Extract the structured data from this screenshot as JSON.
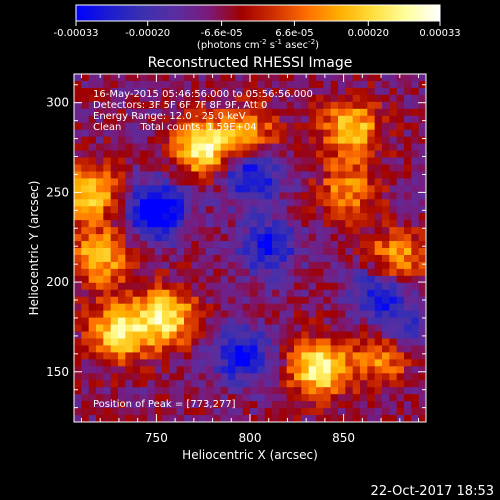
{
  "colorbar": {
    "tick_labels": [
      "-0.00033",
      "-0.00020",
      "-6.6e-05",
      "6.6e-05",
      "0.00020",
      "0.00033"
    ],
    "tick_values": [
      -0.00033,
      -0.0002,
      -6.6e-05,
      6.6e-05,
      0.0002,
      0.00033
    ],
    "range": [
      -0.00033,
      0.00033
    ],
    "units_label": "(photons cm",
    "units_exp1": "-2",
    "units_mid": " s",
    "units_exp2": "-1",
    "units_end": " asec",
    "units_exp3": "-2",
    "units_close": ")"
  },
  "title": "Reconstructed RHESSI Image",
  "annotations": {
    "time_range": "16-May-2015 05:46:56.000 to 05:56:56.000",
    "detectors": "Detectors: 3F 5F 6F 7F 8F 9F, Att 0",
    "energy": "Energy Range: 12.0 - 25.0 keV",
    "clean": "Clean      Total counts: 1.59E+04",
    "peak": "Position of Peak = [773,277]"
  },
  "footer_timestamp": "22-Oct-2017 18:53",
  "colors": {
    "background": "#000000",
    "text": "#ffffff",
    "cmap": [
      "#0000ff",
      "#1c1cd0",
      "#3a30b0",
      "#5a2ea0",
      "#7a1a7a",
      "#a00000",
      "#d03000",
      "#ff7000",
      "#ffb000",
      "#ffe040",
      "#ffffa0",
      "#ffffff"
    ]
  },
  "chart_data": {
    "type": "heatmap",
    "title": "Reconstructed RHESSI Image",
    "xlabel": "Heliocentric X (arcsec)",
    "ylabel": "Heliocentric Y (arcsec)",
    "xlim": [
      706,
      894
    ],
    "ylim": [
      122,
      316
    ],
    "xticks": [
      750,
      800,
      850
    ],
    "yticks": [
      150,
      200,
      250,
      300
    ],
    "xtick_labels": [
      "750",
      "800",
      "850"
    ],
    "ytick_labels": [
      "150",
      "200",
      "250",
      "300"
    ],
    "pixel_grid": [
      48,
      50
    ],
    "peak_position": [
      773,
      277
    ],
    "bright_regions": [
      {
        "x": 775,
        "y": 275,
        "level": 0.95
      },
      {
        "x": 755,
        "y": 180,
        "level": 0.9
      },
      {
        "x": 730,
        "y": 172,
        "level": 0.85
      },
      {
        "x": 837,
        "y": 152,
        "level": 0.95
      },
      {
        "x": 872,
        "y": 160,
        "level": 0.75
      },
      {
        "x": 714,
        "y": 250,
        "level": 0.8
      },
      {
        "x": 720,
        "y": 214,
        "level": 0.7
      },
      {
        "x": 854,
        "y": 285,
        "level": 0.75
      },
      {
        "x": 878,
        "y": 212,
        "level": 0.7
      },
      {
        "x": 800,
        "y": 282,
        "level": 0.55
      },
      {
        "x": 852,
        "y": 250,
        "level": 0.55
      }
    ],
    "dark_regions": [
      {
        "x": 750,
        "y": 240,
        "level": -0.9
      },
      {
        "x": 800,
        "y": 260,
        "level": -0.7
      },
      {
        "x": 810,
        "y": 220,
        "level": -0.6
      },
      {
        "x": 795,
        "y": 160,
        "level": -0.65
      },
      {
        "x": 870,
        "y": 195,
        "level": -0.65
      },
      {
        "x": 880,
        "y": 170,
        "level": -0.6
      }
    ]
  }
}
